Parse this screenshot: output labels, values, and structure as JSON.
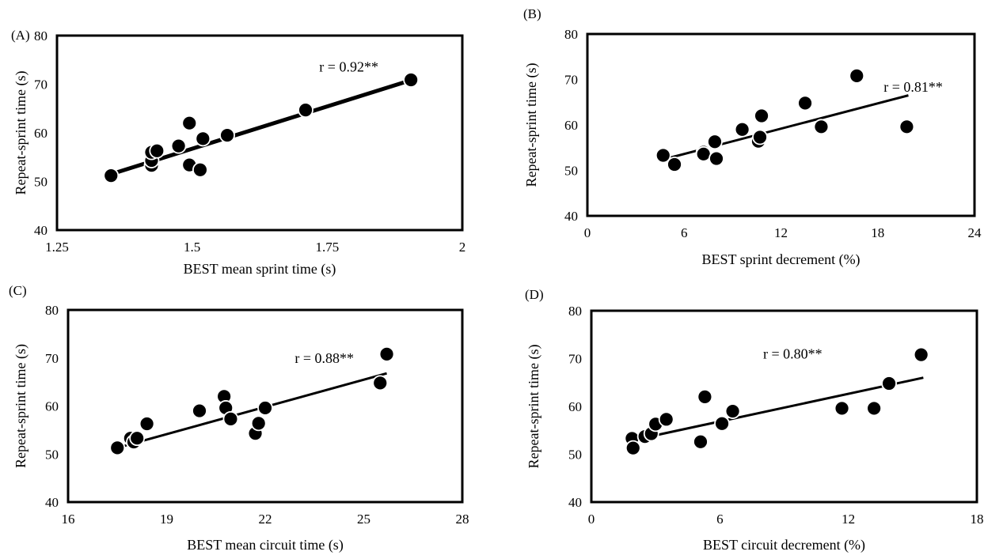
{
  "colors": {
    "marker": "#000000",
    "marker_edge": "#ffffff",
    "trendline": "#000000",
    "frame": "#000000"
  },
  "chart_data": [
    {
      "type": "scatter",
      "panel_label": "(A)",
      "xlabel": "BEST mean sprint time (s)",
      "ylabel": "Repeat-sprint time (s)",
      "xlim": [
        1.25,
        2
      ],
      "ylim": [
        40,
        80
      ],
      "x_ticks": [
        "1.25",
        "1.5",
        "1.75",
        "2"
      ],
      "y_ticks": [
        "40",
        "50",
        "60",
        "70",
        "80"
      ],
      "annotation": "r = 0.92**",
      "trendline": {
        "x": [
          1.35,
          1.91
        ],
        "y": [
          51.5,
          71.0
        ]
      },
      "points": [
        {
          "x": 1.35,
          "y": 51.2
        },
        {
          "x": 1.425,
          "y": 53.3
        },
        {
          "x": 1.425,
          "y": 54.3
        },
        {
          "x": 1.425,
          "y": 56.0
        },
        {
          "x": 1.435,
          "y": 56.3
        },
        {
          "x": 1.475,
          "y": 57.3
        },
        {
          "x": 1.495,
          "y": 62.0
        },
        {
          "x": 1.495,
          "y": 53.4
        },
        {
          "x": 1.515,
          "y": 52.4
        },
        {
          "x": 1.52,
          "y": 58.8
        },
        {
          "x": 1.565,
          "y": 59.5
        },
        {
          "x": 1.71,
          "y": 64.7
        },
        {
          "x": 1.905,
          "y": 70.9
        }
      ]
    },
    {
      "type": "scatter",
      "panel_label": "(B)",
      "xlabel": "BEST sprint decrement (%)",
      "ylabel": "Repeat-sprint time (s)",
      "xlim": [
        0,
        24
      ],
      "ylim": [
        40,
        80
      ],
      "x_ticks": [
        "0",
        "6",
        "12",
        "18",
        "24"
      ],
      "y_ticks": [
        "40",
        "50",
        "60",
        "70",
        "80"
      ],
      "annotation": "r = 0.81**",
      "trendline": {
        "x": [
          4.8,
          19.9
        ],
        "y": [
          52.5,
          66.5
        ]
      },
      "points": [
        {
          "x": 4.7,
          "y": 53.3
        },
        {
          "x": 5.4,
          "y": 51.3
        },
        {
          "x": 7.2,
          "y": 54.0
        },
        {
          "x": 7.2,
          "y": 53.6
        },
        {
          "x": 7.9,
          "y": 56.3
        },
        {
          "x": 8.0,
          "y": 52.6
        },
        {
          "x": 9.6,
          "y": 59.0
        },
        {
          "x": 10.6,
          "y": 56.4
        },
        {
          "x": 10.7,
          "y": 57.3
        },
        {
          "x": 10.8,
          "y": 62.0
        },
        {
          "x": 13.5,
          "y": 64.8
        },
        {
          "x": 14.5,
          "y": 59.6
        },
        {
          "x": 16.7,
          "y": 70.8
        },
        {
          "x": 19.8,
          "y": 59.6
        }
      ]
    },
    {
      "type": "scatter",
      "panel_label": "(C)",
      "xlabel": "BEST mean circuit time (s)",
      "ylabel": "Repeat-sprint time (s)",
      "xlim": [
        16,
        28
      ],
      "ylim": [
        40,
        80
      ],
      "x_ticks": [
        "16",
        "19",
        "22",
        "25",
        "28"
      ],
      "y_ticks": [
        "40",
        "50",
        "60",
        "70",
        "80"
      ],
      "annotation": "r = 0.88**",
      "trendline": {
        "x": [
          17.6,
          25.7
        ],
        "y": [
          51.5,
          66.8
        ]
      },
      "points": [
        {
          "x": 17.5,
          "y": 51.3
        },
        {
          "x": 17.9,
          "y": 53.3
        },
        {
          "x": 18.0,
          "y": 52.5
        },
        {
          "x": 18.1,
          "y": 53.3
        },
        {
          "x": 18.4,
          "y": 56.3
        },
        {
          "x": 20.0,
          "y": 59.0
        },
        {
          "x": 20.75,
          "y": 62.0
        },
        {
          "x": 20.8,
          "y": 59.6
        },
        {
          "x": 20.95,
          "y": 57.3
        },
        {
          "x": 21.7,
          "y": 54.3
        },
        {
          "x": 21.8,
          "y": 56.4
        },
        {
          "x": 22.0,
          "y": 59.6
        },
        {
          "x": 25.5,
          "y": 64.8
        },
        {
          "x": 25.7,
          "y": 70.8
        }
      ]
    },
    {
      "type": "scatter",
      "panel_label": "(D)",
      "xlabel": "BEST circuit decrement (%)",
      "ylabel": "Repeat-sprint time (s)",
      "xlim": [
        0,
        18
      ],
      "ylim": [
        40,
        80
      ],
      "x_ticks": [
        "0",
        "6",
        "12",
        "18"
      ],
      "y_ticks": [
        "40",
        "50",
        "60",
        "70",
        "80"
      ],
      "annotation": "r = 0.80**",
      "trendline": {
        "x": [
          2.0,
          15.5
        ],
        "y": [
          53.0,
          66.0
        ]
      },
      "points": [
        {
          "x": 1.9,
          "y": 53.3
        },
        {
          "x": 1.95,
          "y": 51.3
        },
        {
          "x": 2.5,
          "y": 53.7
        },
        {
          "x": 2.8,
          "y": 54.3
        },
        {
          "x": 3.0,
          "y": 56.3
        },
        {
          "x": 3.5,
          "y": 57.3
        },
        {
          "x": 5.1,
          "y": 52.6
        },
        {
          "x": 5.3,
          "y": 62.0
        },
        {
          "x": 6.1,
          "y": 56.4
        },
        {
          "x": 6.6,
          "y": 59.0
        },
        {
          "x": 11.7,
          "y": 59.6
        },
        {
          "x": 13.2,
          "y": 59.6
        },
        {
          "x": 13.9,
          "y": 64.8
        },
        {
          "x": 15.4,
          "y": 70.8
        }
      ]
    }
  ]
}
